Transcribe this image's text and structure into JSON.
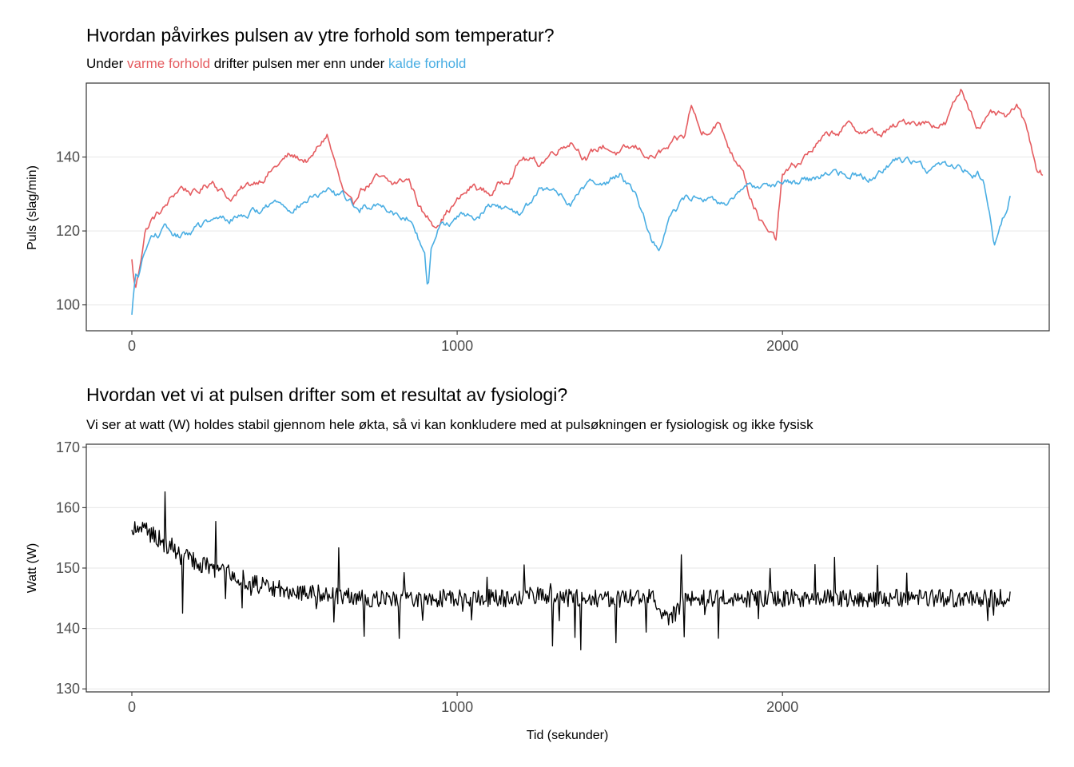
{
  "colors": {
    "warm": "#e55c60",
    "cold": "#4aaee3",
    "watt": "#000000"
  },
  "chart_data": [
    {
      "type": "line",
      "title": "Hvordan påvirkes pulsen av ytre forhold som temperatur?",
      "subtitle": {
        "prefix": "Under ",
        "warm_label": "varme forhold",
        "middle": " drifter pulsen mer enn under ",
        "cold_label": "kalde forhold"
      },
      "xlabel": "",
      "ylabel": "Puls (slag/min)",
      "xlim": [
        -140,
        2820
      ],
      "ylim": [
        93,
        160
      ],
      "xticks": [
        0,
        1000,
        2000
      ],
      "yticks": [
        100,
        120,
        140
      ],
      "grid": true,
      "legend": "none",
      "series": [
        {
          "key": "warm",
          "x": [
            0,
            10,
            20,
            40,
            60,
            100,
            150,
            200,
            250,
            300,
            360,
            420,
            480,
            550,
            600,
            650,
            680,
            700,
            750,
            800,
            850,
            880,
            900,
            930,
            960,
            1000,
            1050,
            1100,
            1150,
            1200,
            1250,
            1300,
            1350,
            1400,
            1450,
            1500,
            1550,
            1600,
            1650,
            1700,
            1720,
            1750,
            1800,
            1850,
            1880,
            1900,
            1950,
            1980,
            2000,
            2050,
            2100,
            2150,
            2200,
            2300,
            2400,
            2500,
            2550,
            2600,
            2650,
            2700,
            2720,
            2750,
            2780,
            2800
          ],
          "y": [
            112,
            104,
            108,
            120,
            123,
            126,
            132,
            130,
            134,
            129,
            132,
            136,
            140,
            139,
            146,
            130,
            125,
            131,
            134,
            132,
            134,
            128,
            124,
            122,
            125,
            128,
            132,
            130,
            134,
            140,
            138,
            142,
            145,
            140,
            143,
            141,
            142,
            140,
            142,
            145,
            154,
            146,
            150,
            140,
            138,
            130,
            120,
            117,
            135,
            138,
            143,
            146,
            148,
            146,
            150,
            149,
            158,
            149,
            151,
            150,
            154,
            147,
            138,
            136
          ]
        },
        {
          "key": "cold",
          "x": [
            0,
            10,
            20,
            40,
            60,
            100,
            150,
            200,
            250,
            300,
            350,
            400,
            450,
            500,
            550,
            600,
            650,
            700,
            750,
            800,
            850,
            880,
            900,
            910,
            920,
            940,
            1000,
            1050,
            1100,
            1150,
            1200,
            1250,
            1300,
            1350,
            1400,
            1450,
            1500,
            1550,
            1600,
            1620,
            1650,
            1700,
            1750,
            1800,
            1850,
            1900,
            1950,
            2000,
            2050,
            2100,
            2150,
            2200,
            2250,
            2300,
            2350,
            2400,
            2450,
            2500,
            2550,
            2600,
            2620,
            2650,
            2680,
            2700
          ],
          "y": [
            97,
            107,
            108,
            114,
            118,
            120,
            118,
            121,
            122,
            123,
            125,
            126,
            128,
            127,
            129,
            130,
            129,
            126,
            128,
            126,
            124,
            118,
            116,
            104,
            114,
            121,
            124,
            124,
            127,
            126,
            125,
            130,
            131,
            128,
            133,
            132,
            136,
            130,
            118,
            115,
            124,
            128,
            130,
            127,
            128,
            131,
            133,
            134,
            133,
            134,
            136,
            136,
            135,
            136,
            140,
            139,
            137,
            138,
            137,
            136,
            133,
            117,
            124,
            130
          ]
        }
      ]
    },
    {
      "type": "line",
      "title": "Hvordan vet vi at pulsen drifter som et resultat av fysiologi?",
      "subtitle": "Vi ser at watt (W) holdes stabil gjennom hele økta, så vi kan konkludere med at pulsøkningen er fysiologisk og ikke fysisk",
      "xlabel": "Tid (sekunder)",
      "ylabel": "Watt (W)",
      "xlim": [
        -140,
        2820
      ],
      "ylim": [
        129.5,
        170.5
      ],
      "xticks": [
        0,
        1000,
        2000
      ],
      "yticks": [
        130,
        140,
        150,
        160,
        170
      ],
      "grid": true,
      "legend": "none",
      "series": [
        {
          "key": "watt",
          "x": [
            0,
            50,
            100,
            150,
            200,
            250,
            300,
            350,
            400,
            450,
            500,
            550,
            600,
            650,
            700,
            750,
            800,
            850,
            900,
            950,
            1000,
            1100,
            1200,
            1300,
            1400,
            1500,
            1600,
            1650,
            1700,
            1800,
            1900,
            2000,
            2100,
            2200,
            2300,
            2400,
            2500,
            2600,
            2700
          ],
          "y": [
            157,
            156,
            154,
            152,
            151,
            150,
            149,
            148,
            147,
            146.5,
            146,
            146,
            145.5,
            145.5,
            145,
            145,
            145,
            145,
            145,
            145,
            145,
            145,
            145,
            145,
            145,
            145,
            145,
            141,
            145,
            145,
            145,
            145,
            145,
            145,
            145,
            145,
            145,
            145,
            145
          ]
        }
      ]
    }
  ]
}
